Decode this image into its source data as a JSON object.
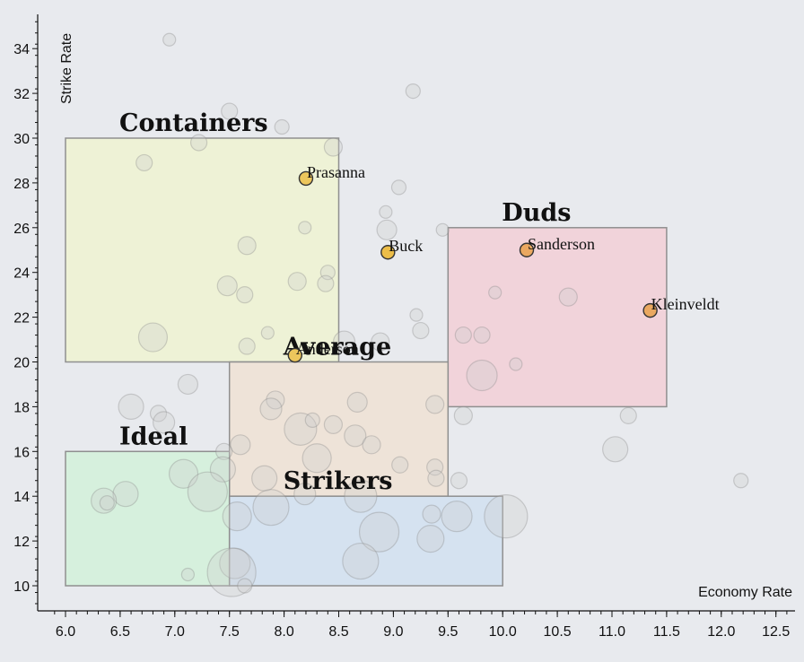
{
  "chart_data": {
    "type": "scatter",
    "xlabel": "Economy Rate",
    "ylabel": "Strike Rate",
    "xlim": [
      5.85,
      12.6
    ],
    "ylim": [
      9.0,
      35.6
    ],
    "xticks": [
      6.0,
      6.5,
      7.0,
      7.5,
      8.0,
      8.5,
      9.0,
      9.5,
      10.0,
      10.5,
      11.0,
      11.5,
      12.0,
      12.5
    ],
    "yticks": [
      10,
      12,
      14,
      16,
      18,
      20,
      22,
      24,
      26,
      28,
      30,
      32,
      34
    ],
    "zones": [
      {
        "label": "Containers",
        "x0": 6.0,
        "x1": 8.5,
        "y0": 20,
        "y1": 30,
        "color": "#eef2d6"
      },
      {
        "label": "Duds",
        "x0": 9.5,
        "x1": 11.5,
        "y0": 18,
        "y1": 26,
        "color": "#f1d3da"
      },
      {
        "label": "Average",
        "x0": 7.5,
        "x1": 9.5,
        "y0": 14,
        "y1": 20,
        "color": "#eee3d8"
      },
      {
        "label": "Ideal",
        "x0": 6.0,
        "x1": 7.5,
        "y0": 10,
        "y1": 16,
        "color": "#d6f0dd"
      },
      {
        "label": "Strikers",
        "x0": 7.5,
        "x1": 10.0,
        "y0": 10,
        "y1": 14,
        "color": "#d5e2f0"
      }
    ],
    "highlighted": [
      {
        "name": "Prasanna",
        "x": 8.2,
        "y": 28.2,
        "color": "#ecc65c"
      },
      {
        "name": "Buck",
        "x": 8.95,
        "y": 24.9,
        "color": "#ecbd48"
      },
      {
        "name": "Sanderson",
        "x": 10.22,
        "y": 25.0,
        "color": "#eaa860"
      },
      {
        "name": "Kleinveldt",
        "x": 11.35,
        "y": 22.3,
        "color": "#eaa860"
      },
      {
        "name": "Anderson",
        "x": 8.1,
        "y": 20.3,
        "color": "#ecc65c"
      }
    ],
    "points": [
      {
        "x": 6.95,
        "y": 34.4,
        "s": 7
      },
      {
        "x": 9.18,
        "y": 32.1,
        "s": 8
      },
      {
        "x": 7.5,
        "y": 31.2,
        "s": 9
      },
      {
        "x": 7.98,
        "y": 30.5,
        "s": 8
      },
      {
        "x": 8.45,
        "y": 29.6,
        "s": 10
      },
      {
        "x": 7.22,
        "y": 29.8,
        "s": 9
      },
      {
        "x": 6.72,
        "y": 28.9,
        "s": 9
      },
      {
        "x": 9.05,
        "y": 27.8,
        "s": 8
      },
      {
        "x": 8.93,
        "y": 26.7,
        "s": 7
      },
      {
        "x": 8.94,
        "y": 25.9,
        "s": 11
      },
      {
        "x": 9.45,
        "y": 25.9,
        "s": 7
      },
      {
        "x": 8.19,
        "y": 26.0,
        "s": 7
      },
      {
        "x": 7.66,
        "y": 25.2,
        "s": 10
      },
      {
        "x": 8.4,
        "y": 24.0,
        "s": 8
      },
      {
        "x": 7.48,
        "y": 23.4,
        "s": 11
      },
      {
        "x": 8.12,
        "y": 23.6,
        "s": 10
      },
      {
        "x": 8.38,
        "y": 23.5,
        "s": 9
      },
      {
        "x": 7.64,
        "y": 23.0,
        "s": 9
      },
      {
        "x": 9.93,
        "y": 23.1,
        "s": 7
      },
      {
        "x": 10.6,
        "y": 22.9,
        "s": 10
      },
      {
        "x": 9.21,
        "y": 22.1,
        "s": 7
      },
      {
        "x": 9.25,
        "y": 21.4,
        "s": 9
      },
      {
        "x": 9.64,
        "y": 21.2,
        "s": 9
      },
      {
        "x": 9.81,
        "y": 21.2,
        "s": 9
      },
      {
        "x": 6.8,
        "y": 21.1,
        "s": 16
      },
      {
        "x": 7.66,
        "y": 20.7,
        "s": 9
      },
      {
        "x": 7.85,
        "y": 21.3,
        "s": 7
      },
      {
        "x": 8.55,
        "y": 20.9,
        "s": 12
      },
      {
        "x": 8.88,
        "y": 20.9,
        "s": 10
      },
      {
        "x": 10.12,
        "y": 19.9,
        "s": 7
      },
      {
        "x": 9.81,
        "y": 19.4,
        "s": 17
      },
      {
        "x": 7.12,
        "y": 19.0,
        "s": 11
      },
      {
        "x": 6.6,
        "y": 18.0,
        "s": 14
      },
      {
        "x": 7.92,
        "y": 18.3,
        "s": 10
      },
      {
        "x": 8.67,
        "y": 18.2,
        "s": 11
      },
      {
        "x": 9.38,
        "y": 18.1,
        "s": 10
      },
      {
        "x": 9.64,
        "y": 17.6,
        "s": 10
      },
      {
        "x": 11.15,
        "y": 17.6,
        "s": 9
      },
      {
        "x": 6.85,
        "y": 17.7,
        "s": 9
      },
      {
        "x": 6.9,
        "y": 17.3,
        "s": 12
      },
      {
        "x": 7.88,
        "y": 17.9,
        "s": 12
      },
      {
        "x": 8.15,
        "y": 17.0,
        "s": 18
      },
      {
        "x": 8.45,
        "y": 17.2,
        "s": 10
      },
      {
        "x": 8.26,
        "y": 17.4,
        "s": 8
      },
      {
        "x": 8.65,
        "y": 16.7,
        "s": 12
      },
      {
        "x": 8.8,
        "y": 16.3,
        "s": 10
      },
      {
        "x": 7.6,
        "y": 16.3,
        "s": 11
      },
      {
        "x": 7.45,
        "y": 16.0,
        "s": 9
      },
      {
        "x": 8.3,
        "y": 15.7,
        "s": 16
      },
      {
        "x": 9.06,
        "y": 15.4,
        "s": 9
      },
      {
        "x": 9.38,
        "y": 15.3,
        "s": 9
      },
      {
        "x": 11.03,
        "y": 16.1,
        "s": 14
      },
      {
        "x": 7.44,
        "y": 15.2,
        "s": 14
      },
      {
        "x": 7.08,
        "y": 15.0,
        "s": 16
      },
      {
        "x": 7.82,
        "y": 14.8,
        "s": 14
      },
      {
        "x": 9.39,
        "y": 14.8,
        "s": 9
      },
      {
        "x": 9.6,
        "y": 14.7,
        "s": 9
      },
      {
        "x": 12.18,
        "y": 14.7,
        "s": 8
      },
      {
        "x": 6.55,
        "y": 14.1,
        "s": 14
      },
      {
        "x": 7.3,
        "y": 14.2,
        "s": 22
      },
      {
        "x": 8.19,
        "y": 14.1,
        "s": 12
      },
      {
        "x": 8.7,
        "y": 14.0,
        "s": 18
      },
      {
        "x": 6.35,
        "y": 13.8,
        "s": 14
      },
      {
        "x": 6.38,
        "y": 13.7,
        "s": 8
      },
      {
        "x": 7.88,
        "y": 13.5,
        "s": 20
      },
      {
        "x": 7.57,
        "y": 13.1,
        "s": 16
      },
      {
        "x": 9.35,
        "y": 13.2,
        "s": 10
      },
      {
        "x": 9.58,
        "y": 13.1,
        "s": 17
      },
      {
        "x": 10.03,
        "y": 13.1,
        "s": 24
      },
      {
        "x": 8.87,
        "y": 12.4,
        "s": 22
      },
      {
        "x": 9.34,
        "y": 12.1,
        "s": 15
      },
      {
        "x": 8.7,
        "y": 11.1,
        "s": 20
      },
      {
        "x": 7.55,
        "y": 11.0,
        "s": 17
      },
      {
        "x": 7.52,
        "y": 10.6,
        "s": 27
      },
      {
        "x": 7.12,
        "y": 10.5,
        "s": 7
      },
      {
        "x": 7.64,
        "y": 10.0,
        "s": 8
      }
    ]
  }
}
